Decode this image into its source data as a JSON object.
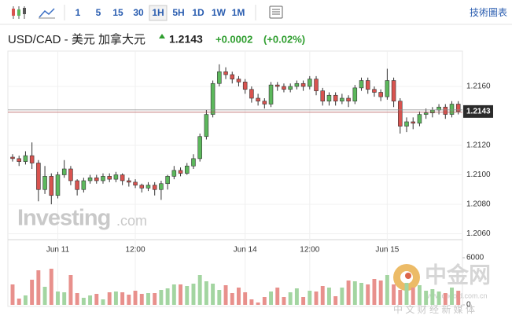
{
  "toolbar": {
    "timeframes": [
      "1",
      "5",
      "15",
      "30",
      "1H",
      "5H",
      "1D",
      "1W",
      "1M"
    ],
    "active_timeframe": "1H",
    "chart_tools": "技術圖表"
  },
  "header": {
    "pair": "USD/CAD - 美元 加拿大元",
    "change": "+0.0002",
    "change_pct": "(+0.02%)"
  },
  "watermark": {
    "brand": "Investing",
    "suffix": ".com",
    "logo": "中金网",
    "site": "www.cngold.com.cn",
    "slogan": "中 文 财 经 新 媒 体"
  },
  "chart_data": {
    "type": "candlestick",
    "last_price": 1.2143,
    "up_color": "#5cb85c",
    "down_color": "#d9534f",
    "vol_up_color": "#a3d5a1",
    "vol_down_color": "#e8908c",
    "grid": true,
    "categories": [
      null,
      null,
      null,
      null,
      null,
      null,
      null,
      "Jun 11",
      null,
      null,
      null,
      null,
      null,
      null,
      null,
      null,
      null,
      null,
      null,
      "12:00",
      null,
      null,
      null,
      null,
      null,
      null,
      null,
      null,
      null,
      null,
      null,
      null,
      null,
      null,
      null,
      null,
      "Jun 14",
      null,
      null,
      null,
      null,
      null,
      null,
      null,
      null,
      null,
      "12:00",
      null,
      null,
      null,
      null,
      null,
      null,
      null,
      null,
      null,
      null,
      null,
      "Jun 15",
      null,
      null,
      null,
      null,
      null,
      null,
      null,
      null,
      null,
      null,
      null
    ],
    "open": [
      1.2112,
      1.2111,
      1.2109,
      1.2113,
      1.2108,
      1.209,
      1.2099,
      1.2086,
      1.21,
      1.2104,
      1.2096,
      1.209,
      1.2096,
      1.2098,
      1.2096,
      1.2099,
      1.2097,
      1.21,
      1.2096,
      1.2095,
      1.2093,
      1.2091,
      1.2093,
      1.209,
      1.2094,
      1.2099,
      1.2103,
      1.2101,
      1.2106,
      1.2111,
      1.2126,
      1.2141,
      1.2162,
      1.217,
      1.2168,
      1.2165,
      1.2163,
      1.2158,
      1.2152,
      1.215,
      1.2148,
      1.2161,
      1.216,
      1.2158,
      1.216,
      1.2162,
      1.216,
      1.2165,
      1.2157,
      1.215,
      1.2154,
      1.215,
      1.2152,
      1.215,
      1.2159,
      1.2164,
      1.2158,
      1.2156,
      1.2153,
      1.2164,
      1.215,
      1.2133,
      1.2136,
      1.2135,
      1.2141,
      1.2142,
      1.2144,
      1.2146,
      1.2141,
      1.2148
    ],
    "high": [
      1.2114,
      1.2113,
      1.2116,
      1.2122,
      1.211,
      1.2106,
      1.2101,
      1.2102,
      1.211,
      1.2106,
      1.2097,
      1.2098,
      1.21,
      1.21,
      1.2101,
      1.2101,
      1.2102,
      1.2101,
      1.2098,
      1.2097,
      1.2094,
      1.2095,
      1.2095,
      1.2096,
      1.21,
      1.2106,
      1.2105,
      1.2108,
      1.2114,
      1.2128,
      1.2144,
      1.2164,
      1.2175,
      1.2173,
      1.217,
      1.2167,
      1.2165,
      1.216,
      1.2155,
      1.2152,
      1.2163,
      1.2163,
      1.2162,
      1.2162,
      1.2164,
      1.2164,
      1.2167,
      1.2167,
      1.2159,
      1.2156,
      1.2156,
      1.2155,
      1.2154,
      1.2161,
      1.2166,
      1.2166,
      1.216,
      1.2158,
      1.2172,
      1.2166,
      1.2152,
      1.2139,
      1.2139,
      1.2143,
      1.2145,
      1.2146,
      1.2148,
      1.2148,
      1.215,
      1.215
    ],
    "low": [
      1.2109,
      1.2106,
      1.2107,
      1.2104,
      1.2082,
      1.2087,
      1.208,
      1.2084,
      1.2098,
      1.2093,
      1.2086,
      1.2088,
      1.2094,
      1.2094,
      1.2094,
      1.2095,
      1.2095,
      1.2093,
      1.2092,
      1.2091,
      1.2088,
      1.2089,
      1.2086,
      1.2083,
      1.209,
      1.2097,
      1.2099,
      1.21,
      1.2104,
      1.2109,
      1.2124,
      1.2139,
      1.216,
      1.2165,
      1.2162,
      1.216,
      1.2155,
      1.2149,
      1.2147,
      1.2145,
      1.2146,
      1.2157,
      1.2156,
      1.2156,
      1.2158,
      1.2157,
      1.2158,
      1.2154,
      1.2147,
      1.2147,
      1.2147,
      1.2148,
      1.2146,
      1.2148,
      1.2157,
      1.2155,
      1.2153,
      1.215,
      1.2151,
      1.2146,
      1.2128,
      1.2129,
      1.2131,
      1.2133,
      1.2138,
      1.2139,
      1.2141,
      1.2138,
      1.2139,
      1.2141
    ],
    "close": [
      1.2111,
      1.2109,
      1.2113,
      1.2108,
      1.209,
      1.2099,
      1.2086,
      1.21,
      1.2104,
      1.2096,
      1.209,
      1.2096,
      1.2098,
      1.2096,
      1.2099,
      1.2097,
      1.21,
      1.2096,
      1.2095,
      1.2093,
      1.2091,
      1.2093,
      1.209,
      1.2094,
      1.2099,
      1.2103,
      1.2101,
      1.2106,
      1.2111,
      1.2126,
      1.2141,
      1.2162,
      1.217,
      1.2168,
      1.2165,
      1.2163,
      1.2158,
      1.2152,
      1.215,
      1.2148,
      1.2161,
      1.216,
      1.2158,
      1.216,
      1.2162,
      1.216,
      1.2165,
      1.2157,
      1.215,
      1.2154,
      1.215,
      1.2152,
      1.215,
      1.2159,
      1.2164,
      1.2158,
      1.2156,
      1.2153,
      1.2164,
      1.215,
      1.2133,
      1.2136,
      1.2135,
      1.2141,
      1.2142,
      1.2144,
      1.2146,
      1.2141,
      1.2148,
      1.2143
    ],
    "volume": [
      2600,
      800,
      1200,
      3200,
      4400,
      2300,
      4600,
      1700,
      1600,
      3800,
      1500,
      900,
      1200,
      1400,
      700,
      1600,
      1700,
      1600,
      1300,
      1800,
      1400,
      1500,
      1500,
      1900,
      2100,
      2600,
      2600,
      2400,
      2700,
      3800,
      3000,
      2700,
      1900,
      2500,
      1500,
      2200,
      1600,
      700,
      300,
      1000,
      1700,
      2200,
      1000,
      1600,
      2100,
      1000,
      1800,
      1700,
      2400,
      2200,
      1100,
      2200,
      3100,
      3000,
      2800,
      2600,
      3300,
      3100,
      3800,
      2600,
      1900,
      2800,
      2200,
      2500,
      1800,
      2000,
      1700,
      1500,
      2200,
      1800
    ],
    "ylim": [
      1.2056,
      1.2184
    ],
    "yticks": [
      {
        "value": 1.206,
        "label": "1.2060"
      },
      {
        "value": 1.208,
        "label": "1.2080"
      },
      {
        "value": 1.21,
        "label": "1.2100"
      },
      {
        "value": 1.212,
        "label": "1.2120"
      },
      {
        "value": 1.216,
        "label": "1.2160"
      }
    ],
    "volume_ylim": [
      0,
      6500
    ],
    "volume_yticks": [
      0,
      6000
    ]
  }
}
